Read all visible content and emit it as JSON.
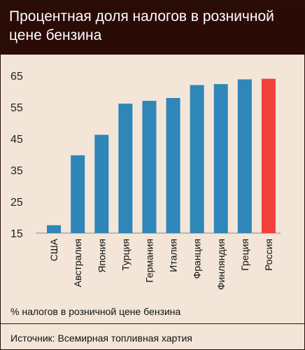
{
  "title": "Процентная доля налогов в розничной цене бензина",
  "note": "% налогов в розничной цене бензина",
  "source": "Источник: Всемирная топливная хартия",
  "chart_data": {
    "type": "bar",
    "title": "Процентная доля налогов в розничной цене бензина",
    "xlabel": "",
    "ylabel": "",
    "ylim": [
      15,
      65
    ],
    "yticks": [
      15,
      25,
      35,
      45,
      55,
      65
    ],
    "grid": false,
    "categories": [
      "США",
      "Австралия",
      "Япония",
      "Турция",
      "Германия",
      "Италия",
      "Франция",
      "Финляндия",
      "Греция",
      "Россия"
    ],
    "values": [
      17.5,
      39.7,
      46.2,
      56.1,
      57,
      57.9,
      62,
      62.3,
      63.8,
      64
    ],
    "colors": [
      "#2f86b8",
      "#2f86b8",
      "#2f86b8",
      "#2f86b8",
      "#2f86b8",
      "#2f86b8",
      "#2f86b8",
      "#2f86b8",
      "#2f86b8",
      "#f0413c"
    ]
  }
}
